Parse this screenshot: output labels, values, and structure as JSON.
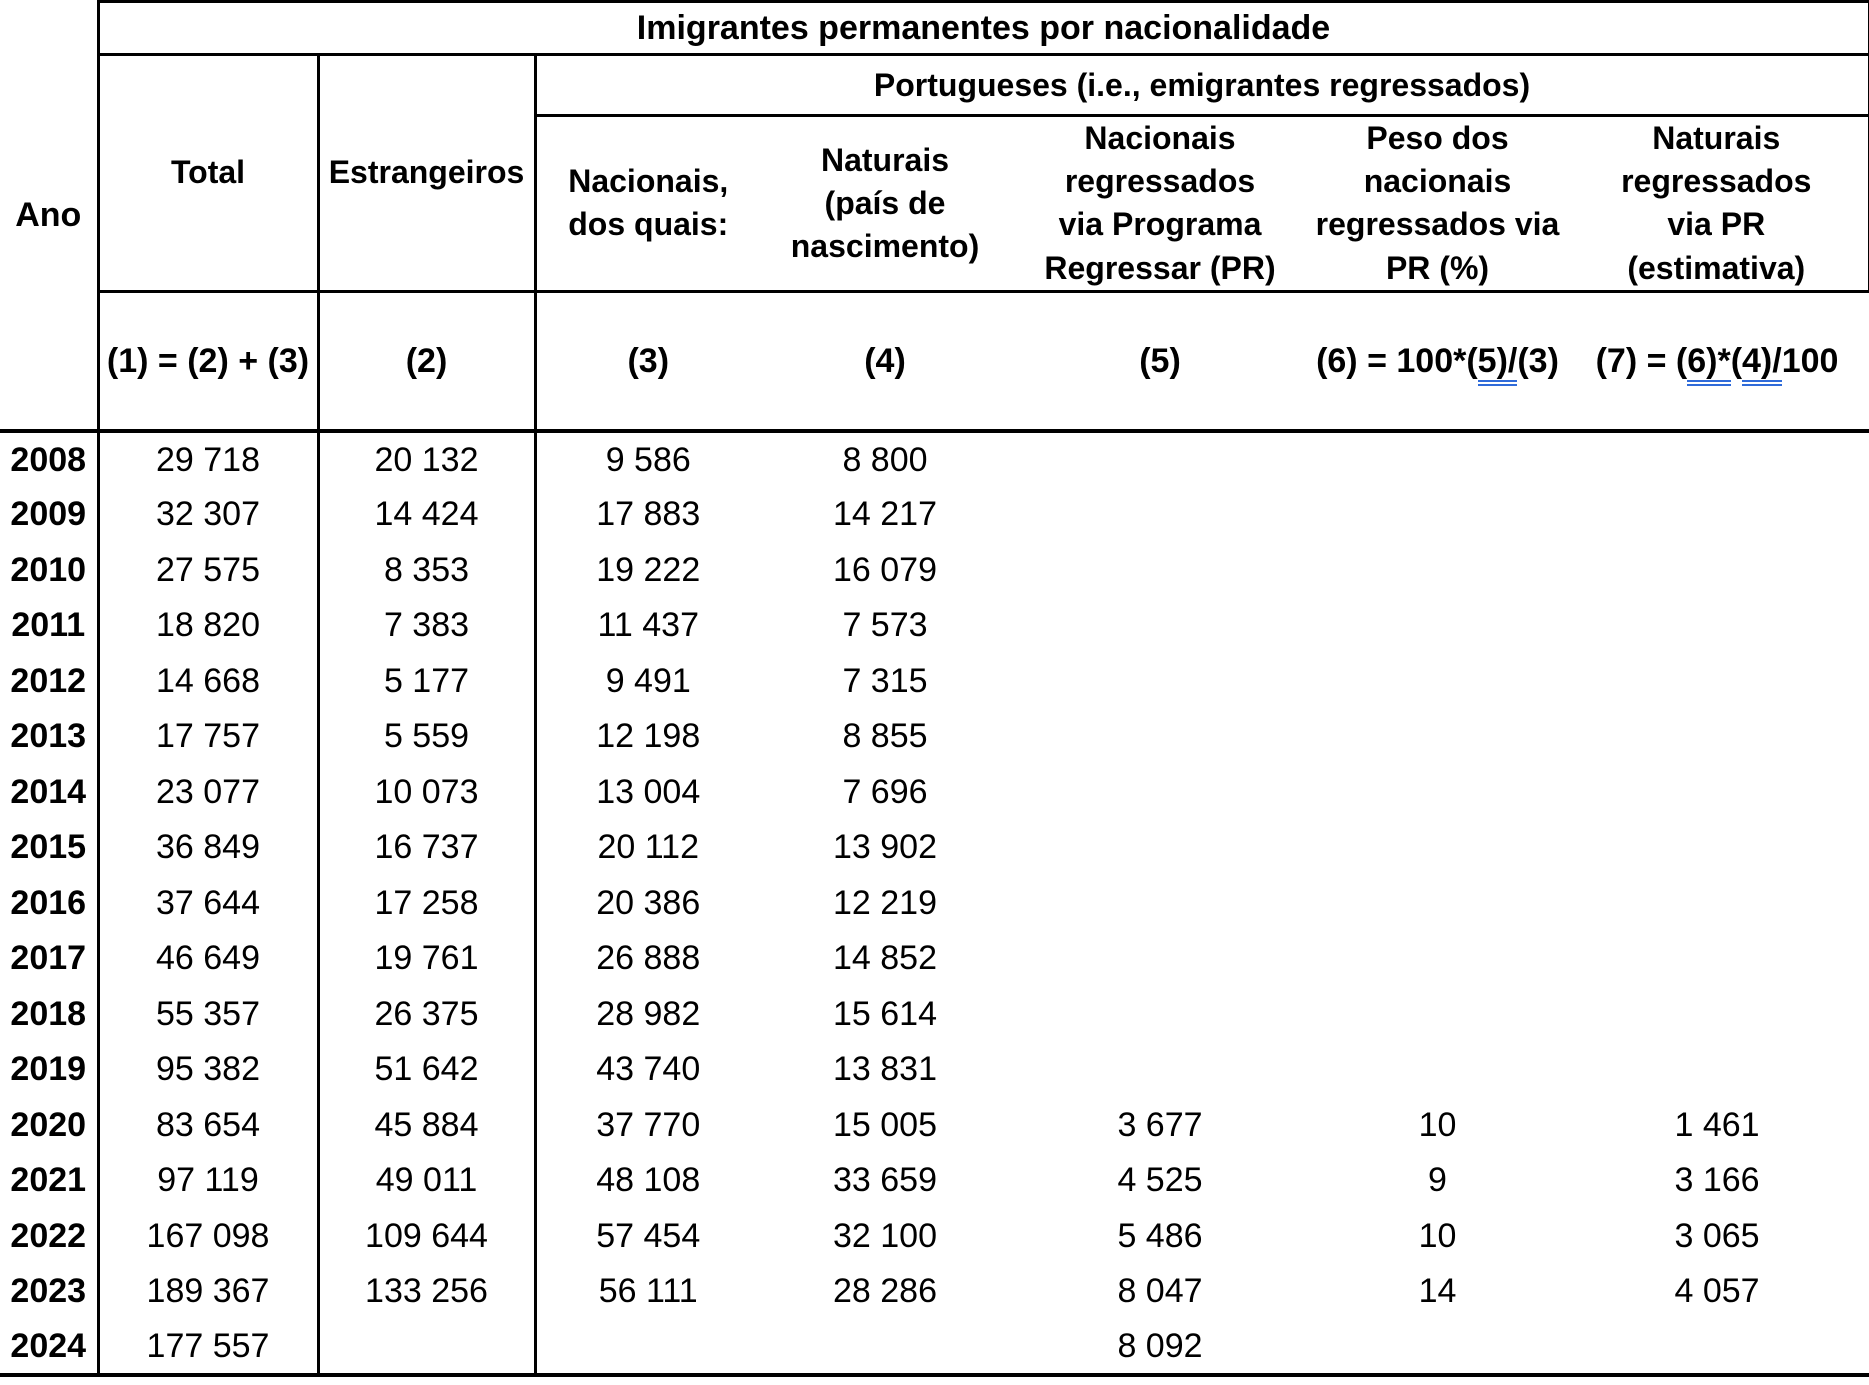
{
  "colors": {
    "grammar_underline": "#2f6bd9",
    "border": "#000000",
    "background": "#ffffff"
  },
  "header": {
    "title": "Imigrantes permanentes por nacionalidade",
    "ano": "Ano",
    "total": "Total",
    "estrangeiros": "Estrangeiros",
    "portugueses_group": "Portugueses (i.e., emigrantes regressados)",
    "nacionais": "Nacionais,\ndos quais:",
    "naturais": "Naturais\n(país de\nnascimento)",
    "nacionais_regressados_pr": "Nacionais\nregressados\nvia Programa\nRegressar (PR)",
    "peso_nacionais_pr": "Peso dos\nnacionais\nregressados via\nPR (%)",
    "naturais_regressados_pr": "Naturais\nregressados\nvia PR\n(estimativa)"
  },
  "formula_row": {
    "f1": "(1) = (2) + (3)",
    "f2": "(2)",
    "f3": "(3)",
    "f4": "(4)",
    "f5": "(5)",
    "f6_prefix": "(6) = 100*(",
    "f6_underlined": "5)/",
    "f6_suffix": "(3)",
    "f7_prefix": "(7) = (",
    "f7_underlined_1": "6)*",
    "f7_mid": "(",
    "f7_underlined_2": "4)/",
    "f7_suffix": "100"
  },
  "rows": [
    [
      "2008",
      "29 718",
      "20 132",
      "9 586",
      "8 800",
      "",
      "",
      ""
    ],
    [
      "2009",
      "32 307",
      "14 424",
      "17 883",
      "14 217",
      "",
      "",
      ""
    ],
    [
      "2010",
      "27 575",
      "8 353",
      "19 222",
      "16 079",
      "",
      "",
      ""
    ],
    [
      "2011",
      "18 820",
      "7 383",
      "11 437",
      "7 573",
      "",
      "",
      ""
    ],
    [
      "2012",
      "14 668",
      "5 177",
      "9 491",
      "7 315",
      "",
      "",
      ""
    ],
    [
      "2013",
      "17 757",
      "5 559",
      "12 198",
      "8 855",
      "",
      "",
      ""
    ],
    [
      "2014",
      "23 077",
      "10 073",
      "13 004",
      "7 696",
      "",
      "",
      ""
    ],
    [
      "2015",
      "36 849",
      "16 737",
      "20 112",
      "13 902",
      "",
      "",
      ""
    ],
    [
      "2016",
      "37 644",
      "17 258",
      "20 386",
      "12 219",
      "",
      "",
      ""
    ],
    [
      "2017",
      "46 649",
      "19 761",
      "26 888",
      "14 852",
      "",
      "",
      ""
    ],
    [
      "2018",
      "55 357",
      "26 375",
      "28 982",
      "15 614",
      "",
      "",
      ""
    ],
    [
      "2019",
      "95 382",
      "51 642",
      "43 740",
      "13 831",
      "",
      "",
      ""
    ],
    [
      "2020",
      "83 654",
      "45 884",
      "37 770",
      "15 005",
      "3 677",
      "10",
      "1 461"
    ],
    [
      "2021",
      "97 119",
      "49 011",
      "48 108",
      "33 659",
      "4 525",
      "9",
      "3 166"
    ],
    [
      "2022",
      "167 098",
      "109 644",
      "57 454",
      "32 100",
      "5 486",
      "10",
      "3 065"
    ],
    [
      "2023",
      "189 367",
      "133 256",
      "56 111",
      "28 286",
      "8 047",
      "14",
      "4 057"
    ],
    [
      "2024",
      "177 557",
      "",
      "",
      "",
      "8 092",
      "",
      ""
    ]
  ]
}
